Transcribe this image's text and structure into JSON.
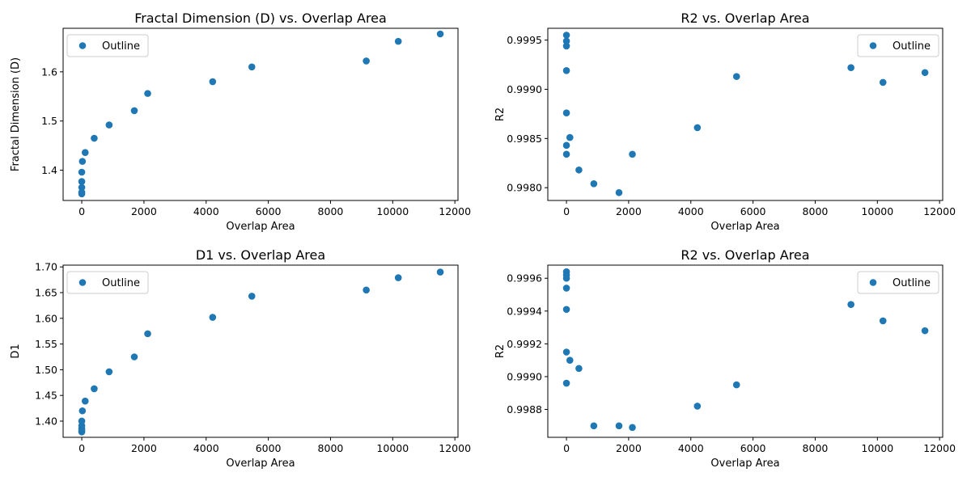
{
  "chart_data": [
    {
      "type": "scatter",
      "title": "Fractal Dimension (D) vs. Overlap Area",
      "xlabel": "Overlap Area",
      "ylabel": "Fractal Dimension (D)",
      "xlim": [
        -600,
        12100
      ],
      "ylim": [
        1.3385,
        1.6885
      ],
      "xticks": [
        0,
        2000,
        4000,
        6000,
        8000,
        10000,
        12000
      ],
      "yticks": [
        1.4,
        1.5,
        1.6
      ],
      "ytick_decimals": 1,
      "legend": {
        "label": "Outline",
        "placement": "upper-left"
      },
      "marker_color": "#1f77b4",
      "series": [
        {
          "name": "Outline",
          "x": [
            0,
            0,
            0,
            0,
            0,
            20,
            110,
            400,
            880,
            1690,
            2120,
            4210,
            5470,
            9150,
            10180,
            11530
          ],
          "y": [
            1.352,
            1.355,
            1.365,
            1.377,
            1.396,
            1.418,
            1.436,
            1.465,
            1.492,
            1.521,
            1.556,
            1.58,
            1.61,
            1.622,
            1.662,
            1.677
          ]
        }
      ]
    },
    {
      "type": "scatter",
      "title": "R2 vs. Overlap Area",
      "xlabel": "Overlap Area",
      "ylabel": "R2",
      "xlim": [
        -600,
        12100
      ],
      "ylim": [
        0.99787,
        0.99962
      ],
      "xticks": [
        0,
        2000,
        4000,
        6000,
        8000,
        10000,
        12000
      ],
      "yticks": [
        0.998,
        0.9985,
        0.999,
        0.9995
      ],
      "ytick_decimals": 4,
      "legend": {
        "label": "Outline",
        "placement": "upper-right"
      },
      "marker_color": "#1f77b4",
      "series": [
        {
          "name": "Outline",
          "x": [
            0,
            0,
            0,
            0,
            0,
            0,
            0,
            110,
            400,
            880,
            1690,
            2120,
            4210,
            5470,
            9150,
            10180,
            11530
          ],
          "y": [
            0.99955,
            0.99949,
            0.99944,
            0.99919,
            0.99876,
            0.99843,
            0.99834,
            0.99851,
            0.99818,
            0.99804,
            0.99795,
            0.99834,
            0.99861,
            0.99913,
            0.99922,
            0.99907,
            0.99917
          ]
        }
      ]
    },
    {
      "type": "scatter",
      "title": "D1 vs. Overlap Area",
      "xlabel": "Overlap Area",
      "ylabel": "D1",
      "xlim": [
        -600,
        12100
      ],
      "ylim": [
        1.3685,
        1.7035
      ],
      "xticks": [
        0,
        2000,
        4000,
        6000,
        8000,
        10000,
        12000
      ],
      "yticks": [
        1.4,
        1.45,
        1.5,
        1.55,
        1.6,
        1.65,
        1.7
      ],
      "ytick_decimals": 2,
      "legend": {
        "label": "Outline",
        "placement": "upper-left"
      },
      "marker_color": "#1f77b4",
      "series": [
        {
          "name": "Outline",
          "x": [
            0,
            0,
            0,
            0,
            0,
            20,
            110,
            400,
            880,
            1690,
            2120,
            4210,
            5470,
            9150,
            10180,
            11530
          ],
          "y": [
            1.379,
            1.381,
            1.385,
            1.391,
            1.4,
            1.42,
            1.439,
            1.463,
            1.496,
            1.525,
            1.57,
            1.602,
            1.643,
            1.655,
            1.679,
            1.69
          ]
        }
      ]
    },
    {
      "type": "scatter",
      "title": "R2 vs. Overlap Area",
      "xlabel": "Overlap Area",
      "ylabel": "R2",
      "xlim": [
        -600,
        12100
      ],
      "ylim": [
        0.99863,
        0.99968
      ],
      "xticks": [
        0,
        2000,
        4000,
        6000,
        8000,
        10000,
        12000
      ],
      "yticks": [
        0.9988,
        0.999,
        0.9992,
        0.9994,
        0.9996
      ],
      "ytick_decimals": 4,
      "legend": {
        "label": "Outline",
        "placement": "upper-right"
      },
      "marker_color": "#1f77b4",
      "series": [
        {
          "name": "Outline",
          "x": [
            0,
            0,
            0,
            0,
            0,
            0,
            0,
            110,
            400,
            880,
            1690,
            2120,
            4210,
            5470,
            9150,
            10180,
            11530
          ],
          "y": [
            0.99964,
            0.99962,
            0.9996,
            0.99954,
            0.99941,
            0.99915,
            0.99896,
            0.9991,
            0.99905,
            0.9987,
            0.9987,
            0.99869,
            0.99882,
            0.99895,
            0.99944,
            0.99934,
            0.99928
          ]
        }
      ]
    }
  ]
}
